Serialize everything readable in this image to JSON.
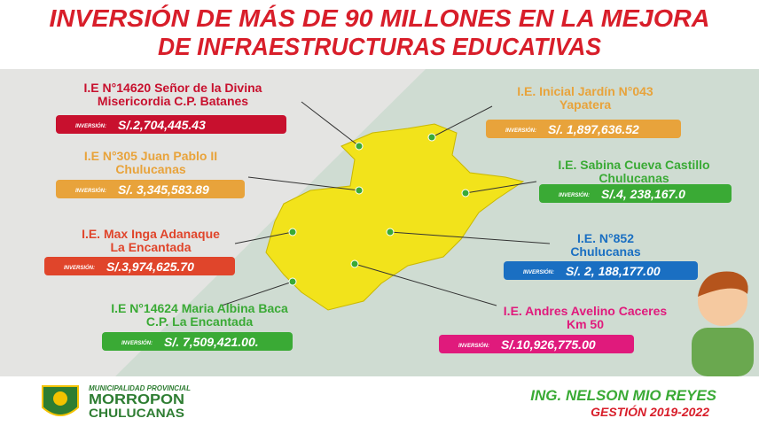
{
  "header": {
    "title": [
      "INVERSIÓN DE MÁS DE 90 MILLONES EN LA MEJORA",
      "DE INFRAESTRUCTURAS EDUCATIVAS"
    ]
  },
  "items": [
    {
      "name": [
        "I.E N°14620 Señor de la Divina",
        "Misericordia C.P. Batanes"
      ],
      "label": "INVERSIÓN:",
      "amount": "S/.2,704,445.43",
      "color": "#c8102e"
    },
    {
      "name": [
        "I.E N°305 Juan Pablo II",
        "Chulucanas"
      ],
      "label": "INVERSIÓN:",
      "amount": "S/.  3,345,583.89",
      "color": "#e8a33b"
    },
    {
      "name": [
        "I.E. Max Inga Adanaque",
        "La Encantada"
      ],
      "label": "INVERSIÓN:",
      "amount": "S/.3,974,625.70",
      "color": "#e0452b"
    },
    {
      "name": [
        "I.E N°14624 Maria Albina Baca",
        "C.P. La Encantada"
      ],
      "label": "INVERSIÓN:",
      "amount": "S/.  7,509,421.00.",
      "color": "#3aaa35"
    },
    {
      "name": [
        "I.E. Inicial Jardín N°043",
        "Yapatera"
      ],
      "label": "INVERSIÓN:",
      "amount": "S/. 1,897,636.52",
      "color": "#e8a33b"
    },
    {
      "name": [
        "I.E. Sabina Cueva Castillo",
        "Chulucanas"
      ],
      "label": "INVERSIÓN:",
      "amount": "S/.4, 238,167.0",
      "color": "#3aaa35"
    },
    {
      "name": [
        "I.E. N°852",
        "Chulucanas"
      ],
      "label": "INVERSIÓN:",
      "amount": "S/. 2, 188,177.00",
      "color": "#1a6fc2"
    },
    {
      "name": [
        "I.E. Andres Avelino Caceres",
        "Km 50"
      ],
      "label": "INVERSIÓN:",
      "amount": "S/.10,926,775.00",
      "color": "#e01a7c"
    }
  ],
  "footer": {
    "org": [
      "MUNICIPALIDAD PROVINCIAL",
      "MORROPON",
      "CHULUCANAS"
    ],
    "signature": [
      "ING. NELSON MIO REYES",
      "GESTIÓN 2019-2022"
    ]
  }
}
